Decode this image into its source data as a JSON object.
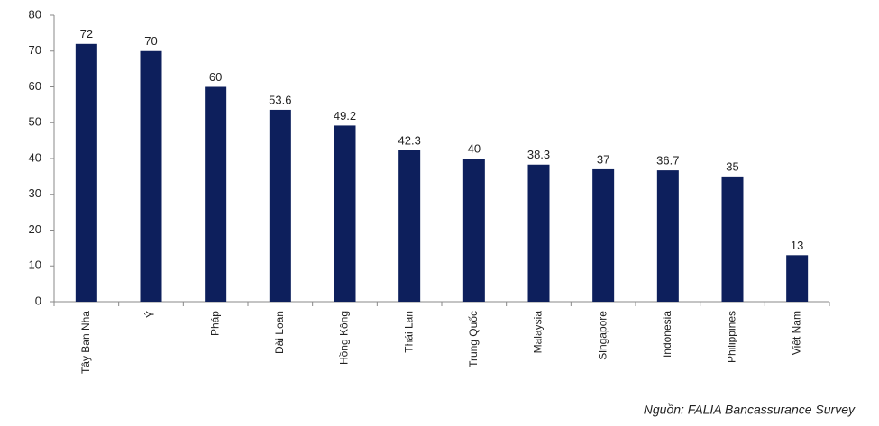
{
  "chart_data": {
    "type": "bar",
    "categories": [
      "Tây Ban Nha",
      "Ý",
      "Pháp",
      "Đài Loan",
      "Hồng Kông",
      "Thái Lan",
      "Trung Quốc",
      "Malaysia",
      "Singapore",
      "Indonesia",
      "Philippines",
      "Việt Nam"
    ],
    "values": [
      72,
      70,
      60,
      53.6,
      49.2,
      42.3,
      40,
      38.3,
      37,
      36.7,
      35,
      13
    ],
    "color": "#0d1f5c",
    "ylim": [
      0,
      80
    ],
    "yticks": [
      0,
      10,
      20,
      30,
      40,
      50,
      60,
      70,
      80
    ],
    "grid": false,
    "source": "Nguồn: FALIA Bancassurance Survey"
  }
}
